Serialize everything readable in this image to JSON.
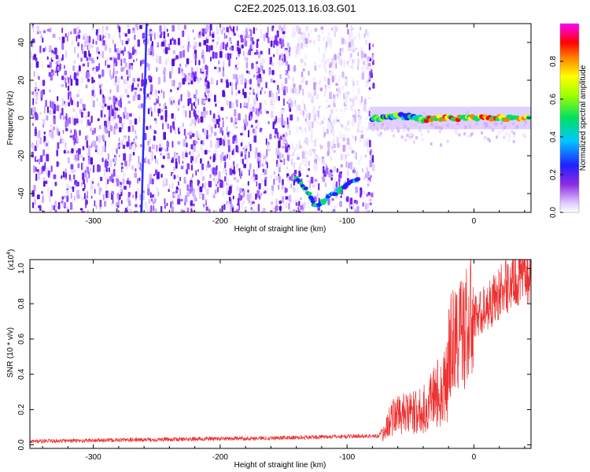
{
  "page": {
    "title": "C2E2.2025.013.16.03.G01"
  },
  "chart_data": [
    {
      "type": "heatmap",
      "xlabel": "Height of straight line (km)",
      "ylabel": "Frequency (Hz)",
      "xlim": [
        -350,
        45
      ],
      "ylim": [
        -50,
        50
      ],
      "xticks": [
        -300,
        -200,
        -100,
        0
      ],
      "yticks": [
        -40,
        -20,
        0,
        20,
        40
      ],
      "colorbar": {
        "label": "Normalized spectral amplitude",
        "range": [
          0,
          1
        ],
        "ticks": [
          "0.0",
          "0.2",
          "0.4",
          "0.6",
          "0.8"
        ],
        "colormap": "rainbow (white → violet → blue → cyan → green → yellow → red → magenta)"
      },
      "features": {
        "noise_region_km": [
          -350,
          -80
        ],
        "signal_track_hz": [
          [
            -80,
            0
          ],
          [
            -70,
            0
          ],
          [
            -60,
            1
          ],
          [
            -50,
            1
          ],
          [
            -40,
            -1
          ],
          [
            -30,
            0
          ],
          [
            -20,
            0
          ],
          [
            -10,
            0
          ],
          [
            0,
            0
          ],
          [
            10,
            0
          ],
          [
            20,
            0
          ],
          [
            30,
            0
          ],
          [
            45,
            0
          ]
        ],
        "weak_track_hz": [
          [
            -140,
            -32
          ],
          [
            -130,
            -40
          ],
          [
            -125,
            -47
          ],
          [
            -118,
            -44
          ],
          [
            -110,
            -40
          ],
          [
            -100,
            -36
          ],
          [
            -90,
            -31
          ]
        ],
        "vertical_streak_km": [
          -262,
          -258
        ]
      },
      "grid": false
    },
    {
      "type": "line",
      "xlabel": "Height of straight line (km)",
      "ylabel": "SNR (10 * v/v)",
      "yscale_label": "(x10",
      "yscale_exp": "4",
      "xlim": [
        -350,
        45
      ],
      "ylim": [
        -0.02,
        1.05
      ],
      "xticks": [
        -300,
        -200,
        -100,
        0
      ],
      "yticks": [
        "0.0",
        "0.2",
        "0.4",
        "0.6",
        "0.8",
        "1.0"
      ],
      "series": [
        {
          "color": "#ee3030",
          "envelope": [
            [
              -350,
              0.02
            ],
            [
              -250,
              0.03
            ],
            [
              -150,
              0.04
            ],
            [
              -90,
              0.05
            ],
            [
              -75,
              0.05
            ],
            [
              -70,
              0.12
            ],
            [
              -65,
              0.25
            ],
            [
              -60,
              0.26
            ],
            [
              -50,
              0.27
            ],
            [
              -40,
              0.3
            ],
            [
              -35,
              0.38
            ],
            [
              -30,
              0.45
            ],
            [
              -25,
              0.5
            ],
            [
              -20,
              0.55
            ],
            [
              -15,
              0.6
            ],
            [
              -10,
              0.63
            ],
            [
              -5,
              0.68
            ],
            [
              0,
              0.72
            ],
            [
              5,
              0.75
            ],
            [
              10,
              0.78
            ],
            [
              15,
              0.82
            ],
            [
              20,
              0.86
            ],
            [
              25,
              0.9
            ],
            [
              30,
              0.93
            ],
            [
              35,
              0.95
            ],
            [
              40,
              0.97
            ],
            [
              45,
              0.98
            ]
          ]
        }
      ],
      "grid": false
    }
  ]
}
